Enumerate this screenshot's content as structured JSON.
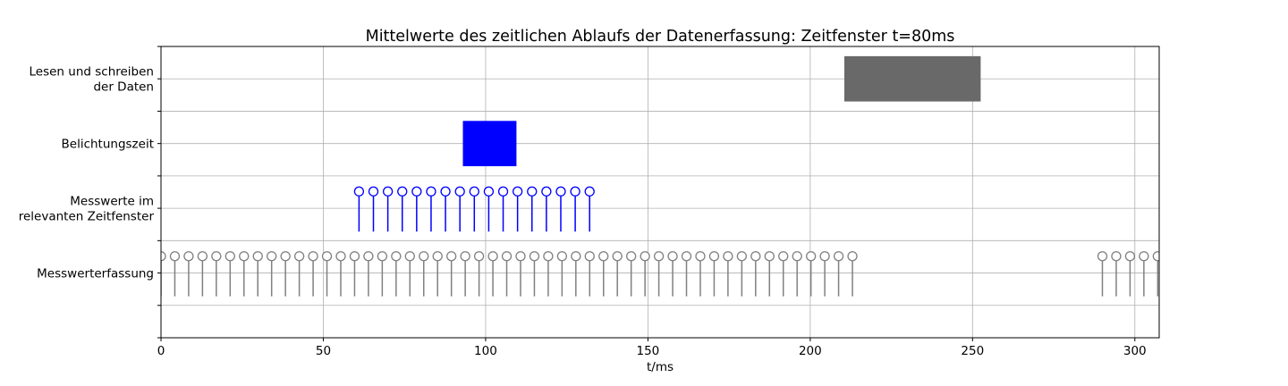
{
  "chart_data": {
    "type": "timeline",
    "title": "Mittelwerte des zeitlichen Ablaufs der Datenerfassung: Zeitfenster t=80ms",
    "xlabel": "t/ms",
    "ylabel": "",
    "xlim": [
      0,
      307.5
    ],
    "x_ticks": [
      0,
      50,
      100,
      150,
      200,
      250,
      300
    ],
    "grid": true,
    "categories": [
      {
        "lines": [
          "Lesen und schreiben",
          "der Daten"
        ]
      },
      {
        "lines": [
          "Belichtungszeit"
        ]
      },
      {
        "lines": [
          "Messwerte im",
          "relevanten Zeitfenster"
        ]
      },
      {
        "lines": [
          "Messwerterfassung"
        ]
      }
    ],
    "bars": [
      {
        "category_index": 0,
        "start": 210.5,
        "end": 252.5,
        "color": "#696969"
      },
      {
        "category_index": 1,
        "start": 93.0,
        "end": 109.5,
        "color": "#0000ff"
      }
    ],
    "stems": [
      {
        "category_index": 2,
        "color": "#0000ff",
        "start": 61.0,
        "step": 4.44,
        "count": 17
      },
      {
        "category_index": 3,
        "color": "#808080",
        "start": 0.0,
        "step": 4.26,
        "count": 51
      },
      {
        "category_index": 3,
        "color": "#808080",
        "start": 290.0,
        "step": 4.26,
        "count": 5
      }
    ]
  }
}
